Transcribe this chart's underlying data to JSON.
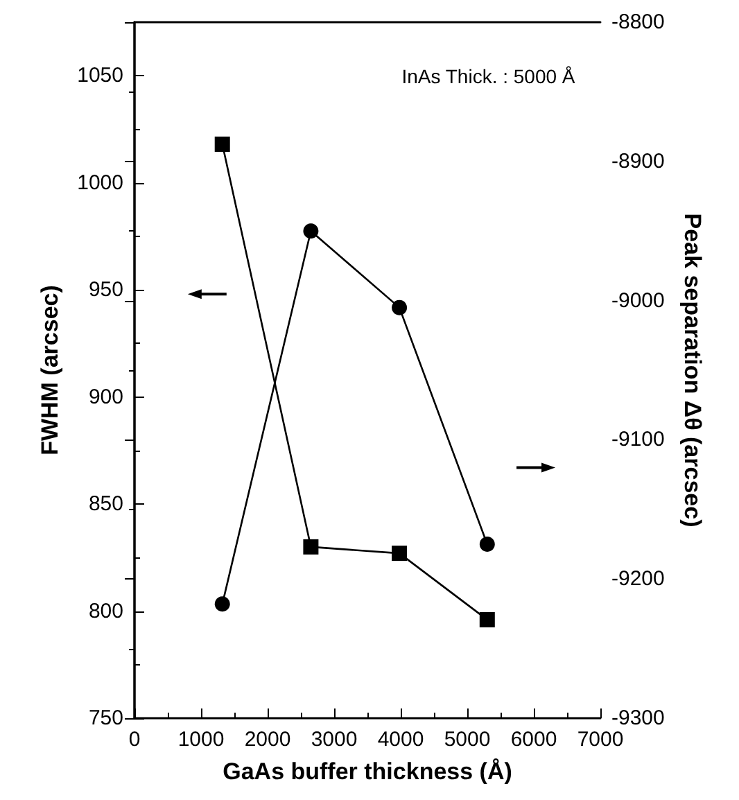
{
  "chart_data": {
    "type": "line",
    "xlabel": "GaAs buffer thickness (Å)",
    "ylabel": "FWHM (arcsec)",
    "y2label": "Peak separation Δθ (arcsec)",
    "annotations": [
      "InAs Thick. : 5000 Å"
    ],
    "series": [
      {
        "marker": "square",
        "color": "#000000",
        "x": [
          1320,
          2650,
          3980,
          5300
        ],
        "values": [
          1018,
          830,
          827,
          796
        ]
      },
      {
        "marker": "circle",
        "color": "#000000",
        "axis": "y2",
        "x": [
          1320,
          2650,
          3980,
          5300
        ],
        "values": [
          -9218,
          -8950,
          -9005,
          -9175
        ]
      }
    ],
    "xlim": [
      0,
      7000
    ],
    "xticks": [
      0,
      1000,
      2000,
      3000,
      4000,
      5000,
      6000,
      7000
    ],
    "ylim": [
      750,
      1075
    ],
    "yticks": [
      750,
      800,
      850,
      900,
      950,
      1000,
      1050
    ],
    "y2lim": [
      -9300,
      -8800
    ],
    "y2ticks": [
      -9300,
      -9200,
      -9100,
      -9000,
      -8900,
      -8800
    ],
    "grid": false,
    "line_style": "solid"
  }
}
